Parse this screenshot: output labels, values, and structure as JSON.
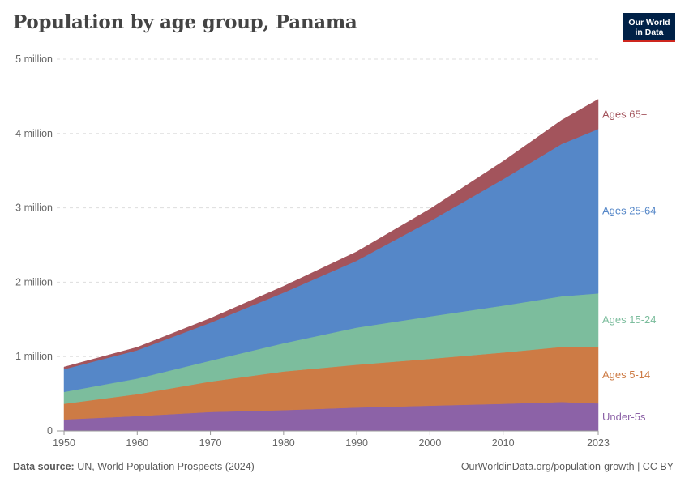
{
  "header": {
    "title": "Population by age group, Panama",
    "logo_line1": "Our World",
    "logo_line2": "in Data"
  },
  "footer": {
    "source_label": "Data source:",
    "source_text": "UN, World Population Prospects (2024)",
    "url": "OurWorldinData.org/population-growth | CC BY"
  },
  "chart_data": {
    "type": "area",
    "stacked": true,
    "title": "Population by age group, Panama",
    "x": [
      1950,
      1960,
      1970,
      1980,
      1990,
      2000,
      2010,
      2018,
      2023
    ],
    "xlim": [
      1949,
      2023
    ],
    "ylim": [
      0,
      5000000
    ],
    "x_ticks": [
      {
        "value": 1950,
        "label": "1950"
      },
      {
        "value": 1960,
        "label": "1960"
      },
      {
        "value": 1970,
        "label": "1970"
      },
      {
        "value": 1980,
        "label": "1980"
      },
      {
        "value": 1990,
        "label": "1990"
      },
      {
        "value": 2000,
        "label": "2000"
      },
      {
        "value": 2010,
        "label": "2010"
      },
      {
        "value": 2023,
        "label": "2023"
      }
    ],
    "y_ticks": [
      {
        "value": 0,
        "label": "0"
      },
      {
        "value": 1000000,
        "label": "1 million"
      },
      {
        "value": 2000000,
        "label": "2 million"
      },
      {
        "value": 3000000,
        "label": "3 million"
      },
      {
        "value": 4000000,
        "label": "4 million"
      },
      {
        "value": 5000000,
        "label": "5 million"
      }
    ],
    "grid": true,
    "series": [
      {
        "name": "Under-5s",
        "color": "#8c62a7",
        "values": [
          155000,
          200000,
          255000,
          280000,
          315000,
          340000,
          365000,
          390000,
          370000
        ]
      },
      {
        "name": "Ages 5-14",
        "color": "#cd7b45",
        "values": [
          210000,
          295000,
          410000,
          520000,
          575000,
          630000,
          690000,
          740000,
          760000
        ]
      },
      {
        "name": "Ages 15-24",
        "color": "#7cbd9d",
        "values": [
          160000,
          210000,
          280000,
          380000,
          500000,
          570000,
          630000,
          680000,
          720000
        ]
      },
      {
        "name": "Ages 25-64",
        "color": "#5587c8",
        "values": [
          305000,
          380000,
          510000,
          680000,
          900000,
          1280000,
          1700000,
          2050000,
          2210000
        ]
      },
      {
        "name": "Ages 65+",
        "color": "#a3545c",
        "values": [
          30000,
          40000,
          60000,
          85000,
          120000,
          165000,
          240000,
          320000,
          400000
        ]
      }
    ]
  }
}
